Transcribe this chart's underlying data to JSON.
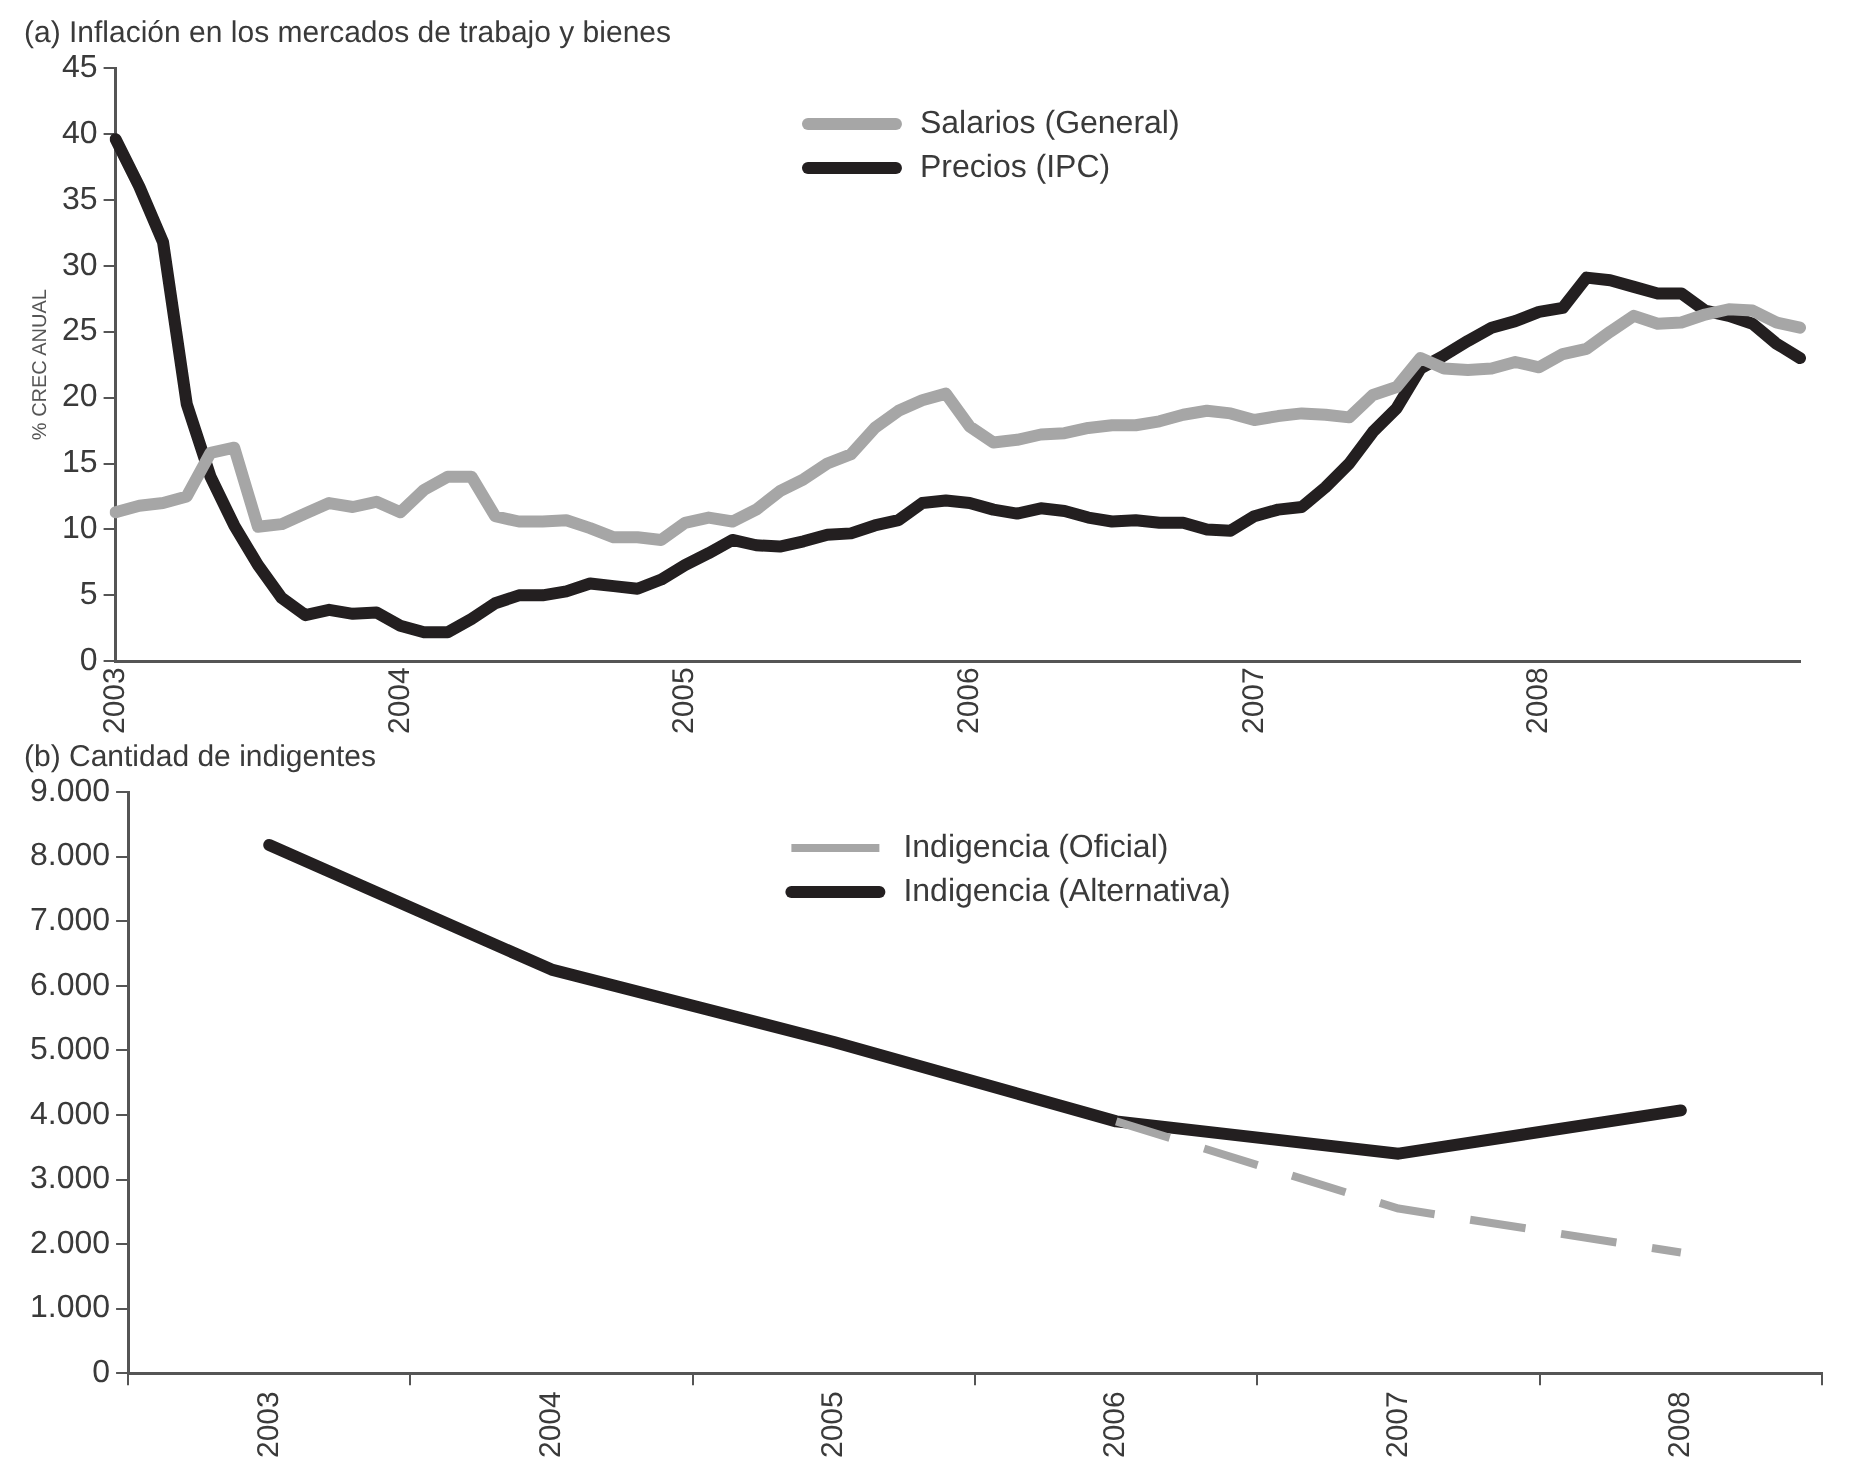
{
  "chart_data": [
    {
      "type": "line",
      "title": "(a) Inflación en los mercados de trabajo y bienes",
      "ylabel": "% CREC ANUAL",
      "categories": [
        "2003",
        null,
        null,
        null,
        null,
        null,
        null,
        null,
        null,
        null,
        null,
        null,
        "2004",
        null,
        null,
        null,
        null,
        null,
        null,
        null,
        null,
        null,
        null,
        null,
        "2005",
        null,
        null,
        null,
        null,
        null,
        null,
        null,
        null,
        null,
        null,
        null,
        "2006",
        null,
        null,
        null,
        null,
        null,
        null,
        null,
        null,
        null,
        null,
        null,
        "2007",
        null,
        null,
        null,
        null,
        null,
        null,
        null,
        null,
        null,
        null,
        null,
        "2008",
        null,
        null,
        null,
        null,
        null,
        null,
        null,
        null,
        null,
        null,
        null
      ],
      "series": [
        {
          "name": "Salarios (General)",
          "color": "#a6a6a6",
          "values": [
            11.3,
            11.8,
            12,
            12.5,
            15.8,
            16.2,
            10.2,
            10.4,
            11.2,
            12,
            11.7,
            12.1,
            11.3,
            13,
            14,
            14,
            11,
            10.6,
            10.6,
            10.7,
            10.1,
            9.4,
            9.4,
            9.2,
            10.5,
            10.9,
            10.6,
            11.5,
            12.9,
            13.8,
            15,
            15.7,
            17.7,
            19,
            19.8,
            20.3,
            17.8,
            16.6,
            16.8,
            17.2,
            17.3,
            17.7,
            17.9,
            17.9,
            18.2,
            18.7,
            19,
            18.8,
            18.3,
            18.6,
            18.8,
            18.7,
            18.5,
            20.2,
            20.8,
            23,
            22.2,
            22.1,
            22.2,
            22.7,
            22.3,
            23.3,
            23.7,
            25,
            26.2,
            25.6,
            25.7,
            26.3,
            26.7,
            26.6,
            25.7,
            25.3
          ]
        },
        {
          "name": "Precios (IPC)",
          "color": "#231f20",
          "values": [
            39.6,
            36,
            31.8,
            19.5,
            14,
            10.3,
            7.3,
            4.8,
            3.5,
            3.9,
            3.6,
            3.7,
            2.7,
            2.2,
            2.2,
            3.2,
            4.4,
            5,
            5,
            5.3,
            5.9,
            5.7,
            5.5,
            6.2,
            7.3,
            8.2,
            9.2,
            8.8,
            8.7,
            9.1,
            9.6,
            9.7,
            10.3,
            10.7,
            12,
            12.2,
            12,
            11.5,
            11.2,
            11.6,
            11.4,
            10.9,
            10.6,
            10.7,
            10.5,
            10.5,
            10,
            9.9,
            11,
            11.5,
            11.7,
            13.2,
            15,
            17.4,
            19.2,
            22.2,
            23.2,
            24.3,
            25.3,
            25.8,
            26.5,
            26.8,
            29.1,
            28.9,
            28.4,
            27.9,
            27.9,
            26.6,
            26.2,
            25.6,
            24.1,
            23
          ]
        }
      ],
      "ylim": [
        0,
        45
      ],
      "yticks": [
        0,
        5,
        10,
        15,
        20,
        25,
        30,
        35,
        40,
        45
      ],
      "grid": false,
      "legend": "top",
      "marker": "none",
      "line_style": "solid"
    },
    {
      "type": "line",
      "title": "(b) Cantidad de indigentes",
      "categories": [
        "2003",
        "2004",
        "2005",
        "2006",
        "2007",
        "2008"
      ],
      "series": [
        {
          "name": "Indigencia (Oficial)",
          "color": "#a6a6a6",
          "line_style": "dashed",
          "values": [
            null,
            null,
            null,
            3900,
            2550,
            1870
          ]
        },
        {
          "name": "Indigencia (Alternativa)",
          "color": "#231f20",
          "values": [
            8180,
            6250,
            5130,
            3900,
            3400,
            4070
          ]
        }
      ],
      "ylim": [
        0,
        9000
      ],
      "yticks": [
        0,
        {
          "value": 1000,
          "label": "1.000"
        },
        {
          "value": 2000,
          "label": "2.000"
        },
        {
          "value": 3000,
          "label": "3.000"
        },
        {
          "value": 4000,
          "label": "4.000"
        },
        {
          "value": 5000,
          "label": "5.000"
        },
        {
          "value": 6000,
          "label": "6.000"
        },
        {
          "value": 7000,
          "label": "7.000"
        },
        {
          "value": 8000,
          "label": "8.000"
        },
        {
          "value": 9000,
          "label": "9.000"
        }
      ],
      "grid": false,
      "legend": "top",
      "marker": "none",
      "line_style": "solid"
    }
  ]
}
